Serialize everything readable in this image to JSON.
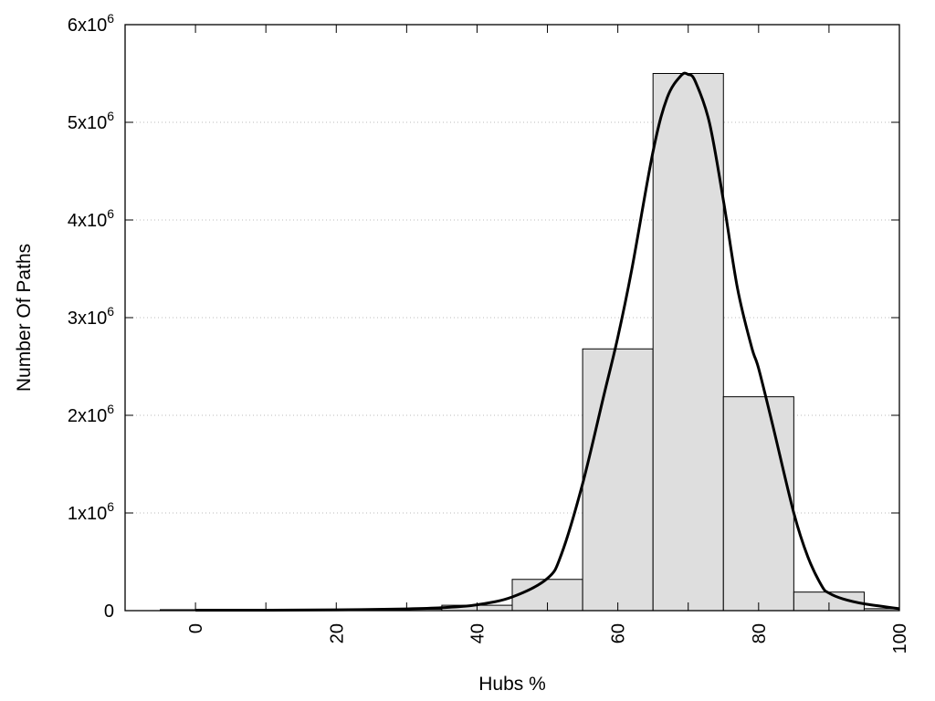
{
  "chart_data": {
    "type": "bar",
    "title": "",
    "xlabel": "Hubs %",
    "ylabel": "Number Of Paths",
    "xlim": [
      -10,
      100
    ],
    "ylim": [
      0,
      6000000
    ],
    "grid": "horizontal dotted",
    "x_ticks": [
      {
        "value": 0,
        "label": "0"
      },
      {
        "value": 20,
        "label": "20"
      },
      {
        "value": 40,
        "label": "40"
      },
      {
        "value": 60,
        "label": "60"
      },
      {
        "value": 80,
        "label": "80"
      },
      {
        "value": 100,
        "label": "100"
      }
    ],
    "x_minor_ticks": [
      10,
      30,
      50,
      70,
      90
    ],
    "y_ticks": [
      {
        "value": 0,
        "base": "0",
        "exp": ""
      },
      {
        "value": 1000000,
        "base": "1x10",
        "exp": "6"
      },
      {
        "value": 2000000,
        "base": "2x10",
        "exp": "6"
      },
      {
        "value": 3000000,
        "base": "3x10",
        "exp": "6"
      },
      {
        "value": 4000000,
        "base": "4x10",
        "exp": "6"
      },
      {
        "value": 5000000,
        "base": "5x10",
        "exp": "6"
      },
      {
        "value": 6000000,
        "base": "6x10",
        "exp": "6"
      }
    ],
    "bins": [
      {
        "from": -5,
        "to": 5,
        "value": 10000
      },
      {
        "from": 5,
        "to": 15,
        "value": 5000
      },
      {
        "from": 15,
        "to": 25,
        "value": 5000
      },
      {
        "from": 25,
        "to": 35,
        "value": 15000
      },
      {
        "from": 35,
        "to": 45,
        "value": 55000
      },
      {
        "from": 45,
        "to": 55,
        "value": 320000
      },
      {
        "from": 55,
        "to": 65,
        "value": 2680000
      },
      {
        "from": 65,
        "to": 75,
        "value": 5500000
      },
      {
        "from": 75,
        "to": 85,
        "value": 2190000
      },
      {
        "from": 85,
        "to": 95,
        "value": 190000
      },
      {
        "from": 95,
        "to": 105,
        "value": 20000
      }
    ],
    "curve": {
      "x": [
        0,
        10,
        20,
        30,
        35,
        40,
        45,
        50,
        52,
        55,
        58,
        60,
        62,
        65,
        67,
        69,
        70,
        71,
        73,
        75,
        77,
        79,
        80,
        82,
        85,
        87,
        89,
        90,
        92,
        95,
        100
      ],
      "y": [
        5000,
        5000,
        8000,
        18000,
        30000,
        60000,
        140000,
        330000,
        580000,
        1300000,
        2200000,
        2800000,
        3500000,
        4700000,
        5250000,
        5480000,
        5490000,
        5420000,
        5000000,
        4200000,
        3300000,
        2700000,
        2480000,
        1900000,
        1000000,
        550000,
        250000,
        180000,
        120000,
        70000,
        20000
      ]
    },
    "colors": {
      "bar_fill": "#dedede",
      "bar_stroke": "#000000",
      "curve": "#000000",
      "grid": "#bbbbbb"
    }
  }
}
